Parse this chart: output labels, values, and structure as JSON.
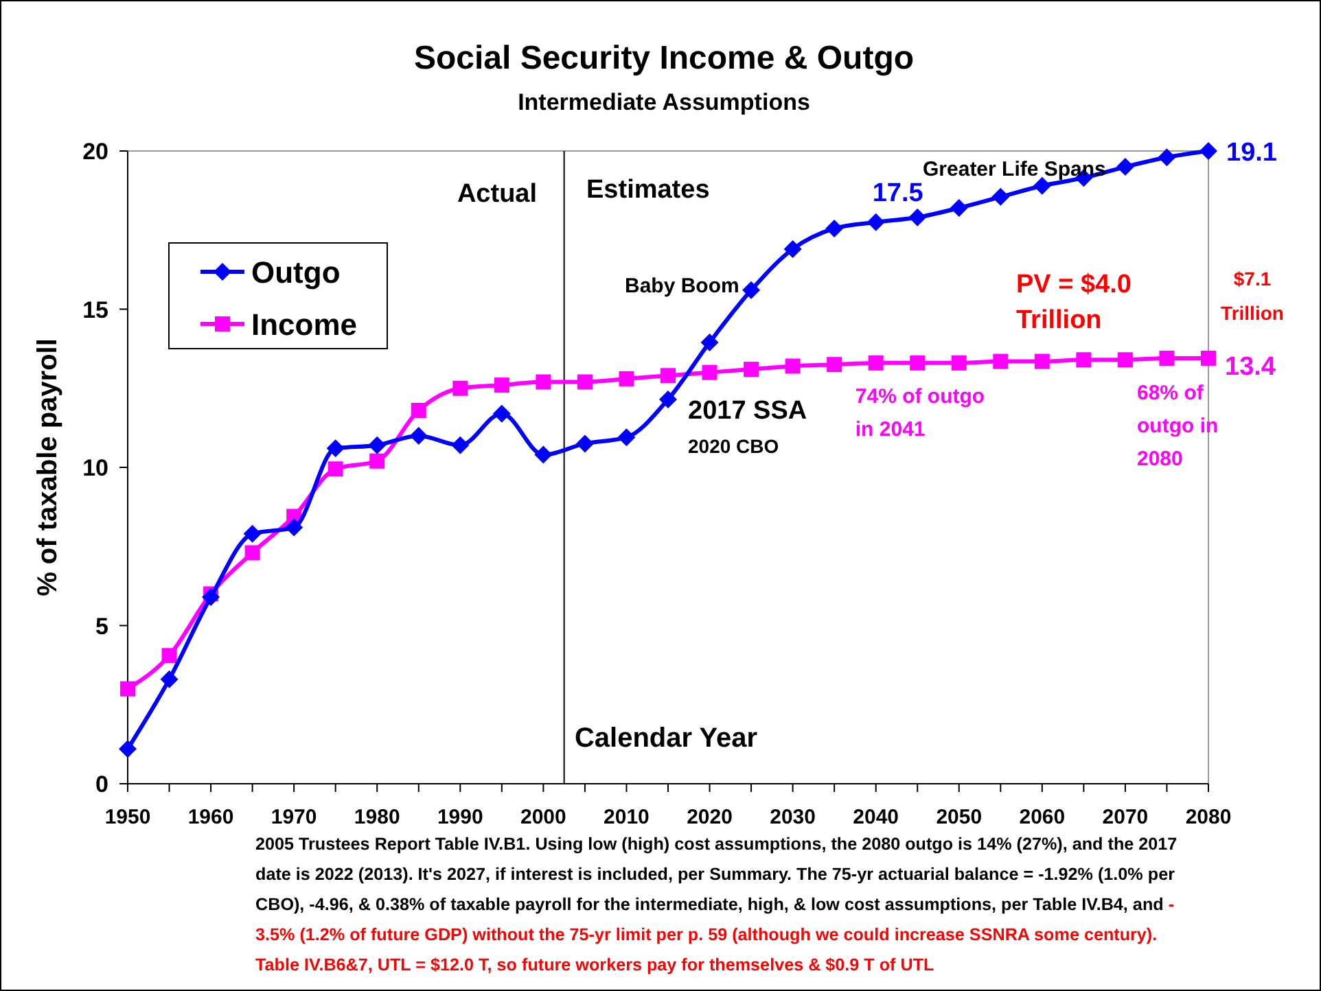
{
  "chart_data": {
    "type": "line",
    "title": "Social Security Income & Outgo",
    "subtitle": "Intermediate Assumptions",
    "xlabel": "Calendar Year",
    "ylabel": "% of taxable payroll",
    "x": [
      1950,
      1955,
      1960,
      1965,
      1970,
      1975,
      1980,
      1985,
      1990,
      1995,
      2000,
      2005,
      2010,
      2015,
      2020,
      2025,
      2030,
      2035,
      2040,
      2045,
      2050,
      2055,
      2060,
      2065,
      2070,
      2075,
      2080
    ],
    "series": [
      {
        "name": "Outgo",
        "color": "#0000ff",
        "marker": "diamond",
        "values": [
          1.1,
          3.3,
          5.9,
          7.9,
          8.1,
          10.6,
          10.7,
          11.0,
          10.7,
          11.7,
          10.4,
          10.75,
          10.95,
          12.15,
          13.95,
          15.6,
          16.9,
          17.55,
          17.75,
          17.9,
          18.2,
          18.55,
          18.9,
          19.15,
          19.5,
          19.8,
          20.0
        ]
      },
      {
        "name": "Income",
        "color": "#ff00ff",
        "marker": "square",
        "values": [
          3.0,
          4.05,
          6.0,
          7.3,
          8.45,
          9.95,
          10.2,
          11.8,
          12.5,
          12.6,
          12.7,
          12.7,
          12.8,
          12.9,
          13.0,
          13.1,
          13.2,
          13.25,
          13.3,
          13.3,
          13.3,
          13.35,
          13.35,
          13.4,
          13.4,
          13.45,
          13.45
        ]
      }
    ],
    "xlim": [
      1950,
      2080
    ],
    "ylim": [
      0,
      20
    ],
    "xticks": [
      1950,
      {
        "value": 1955,
        "label": null
      },
      1960,
      {
        "value": 1965,
        "label": null
      },
      1970,
      {
        "value": 1975,
        "label": null
      },
      1980,
      {
        "value": 1985,
        "label": null
      },
      1990,
      {
        "value": 1995,
        "label": null
      },
      2000,
      {
        "value": 2005,
        "label": null
      },
      2010,
      {
        "value": 2015,
        "label": null
      },
      2020,
      {
        "value": 2025,
        "label": null
      },
      2030,
      {
        "value": 2035,
        "label": null
      },
      2040,
      {
        "value": 2045,
        "label": null
      },
      2050,
      {
        "value": 2055,
        "label": null
      },
      2060,
      {
        "value": 2065,
        "label": null
      },
      2070,
      {
        "value": 2075,
        "label": null
      },
      2080
    ],
    "yticks": [
      0,
      5,
      10,
      15,
      20
    ],
    "grid": false,
    "legend": "top left",
    "ref_lines": [
      {
        "axis": "x",
        "value": 2002.5,
        "color": "#000000"
      }
    ],
    "annotations": [
      "Actual",
      "Estimates",
      "Baby Boom",
      "Greater Life Spans",
      {
        "text": "17.5",
        "x": 2040,
        "y": 17.5
      },
      "19.1",
      "PV = $4.0\nTrillion",
      "$7.1\nTrillion",
      {
        "text": "13.4",
        "x": 2080,
        "y": 13.4
      },
      {
        "text": "74% of outgo\nin 2041",
        "x": 2041,
        "y": 13.3
      },
      {
        "text": "68% of\noutgo in\n2080",
        "x": 2080,
        "y": 13.4
      },
      "2017 SSA",
      "2020 CBO",
      "2005 Trustees Report Table IV.B1.  Using low (high) cost assumptions, the 2080 outgo is 14% (27%), and the 2017\ndate is 2022 (2013).  It's 2027, if interest is included, per Summary.  The 75-yr actuarial balance = -1.92% (1.0% per\nCBO), -4.96, & 0.38% of taxable payroll for the intermediate, high, & low cost assumptions, per Table IV.B4, and ",
      "-\n3.5% (1.2% of future GDP) without the 75-yr limit per p. 59 (although we could increase SSNRA some century).\nTable IV.B6&7, UTL = $12.0 T, so future workers pay for themselves & $0.9 T of UTL"
    ]
  }
}
